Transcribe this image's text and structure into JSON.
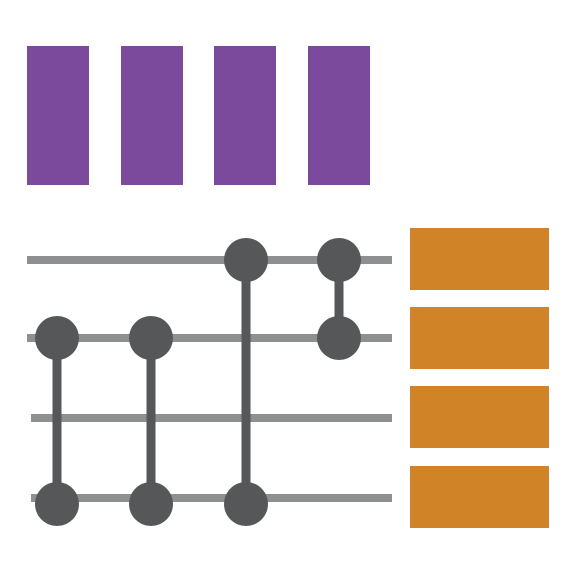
{
  "diagram": {
    "type": "quantum-circuit-icon",
    "colors": {
      "background": "#ffffff",
      "top_blocks": "#7b4a9c",
      "wires": "#8e8f91",
      "gates": "#555759",
      "right_blocks": "#d08327"
    },
    "counts": {
      "top_blocks": 4,
      "wires": 4,
      "controlled_connections": 4,
      "right_blocks": 4
    }
  }
}
